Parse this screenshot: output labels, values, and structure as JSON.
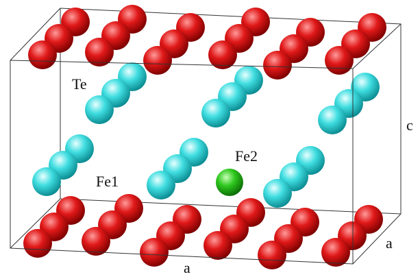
{
  "atom_labels": [
    "Te",
    "Fe1",
    "Fe2"
  ],
  "axis_labels": [
    "c",
    "a",
    "a"
  ]
}
